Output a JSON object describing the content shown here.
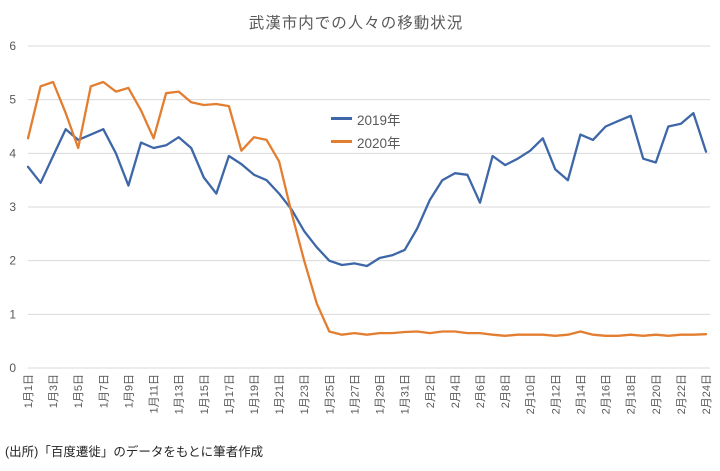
{
  "source_note": "(出所)「百度遷徙」のデータをもとに筆者作成",
  "colors": {
    "series_2019": "#3E67A8",
    "series_2020": "#E37E31",
    "gridline": "#D9D9D9",
    "axis_text": "#595959",
    "title_text": "#595959"
  },
  "chart_data": {
    "type": "line",
    "title": "武漢市内での人々の移動状況",
    "xlabel": "",
    "ylabel": "",
    "ylim": [
      0,
      6
    ],
    "y_ticks": [
      0,
      1,
      2,
      3,
      4,
      5,
      6
    ],
    "grid": true,
    "legend_position": "inside-top-center",
    "x_tick_step": 2,
    "categories": [
      "1月1日",
      "1月2日",
      "1月3日",
      "1月4日",
      "1月5日",
      "1月6日",
      "1月7日",
      "1月8日",
      "1月9日",
      "1月10日",
      "1月11日",
      "1月12日",
      "1月13日",
      "1月14日",
      "1月15日",
      "1月16日",
      "1月17日",
      "1月18日",
      "1月19日",
      "1月20日",
      "1月21日",
      "1月22日",
      "1月23日",
      "1月24日",
      "1月25日",
      "1月26日",
      "1月27日",
      "1月28日",
      "1月29日",
      "1月30日",
      "1月31日",
      "2月1日",
      "2月2日",
      "2月3日",
      "2月4日",
      "2月5日",
      "2月6日",
      "2月7日",
      "2月8日",
      "2月9日",
      "2月10日",
      "2月11日",
      "2月12日",
      "2月13日",
      "2月14日",
      "2月15日",
      "2月16日",
      "2月17日",
      "2月18日",
      "2月19日",
      "2月20日",
      "2月21日",
      "2月22日",
      "2月23日",
      "2月24日"
    ],
    "series": [
      {
        "name": "2019年",
        "color": "#3E67A8",
        "values": [
          3.75,
          3.45,
          3.95,
          4.45,
          4.25,
          4.35,
          4.45,
          4.0,
          3.4,
          4.2,
          4.1,
          4.15,
          4.3,
          4.1,
          3.55,
          3.25,
          3.95,
          3.8,
          3.6,
          3.5,
          3.25,
          2.95,
          2.55,
          2.25,
          2.0,
          1.92,
          1.95,
          1.9,
          2.05,
          2.1,
          2.2,
          2.6,
          3.13,
          3.5,
          3.63,
          3.6,
          3.08,
          3.95,
          3.78,
          3.9,
          4.05,
          4.28,
          3.7,
          3.5,
          4.35,
          4.25,
          4.5,
          4.6,
          4.7,
          3.9,
          3.83,
          4.5,
          4.55,
          4.75,
          4.03
        ]
      },
      {
        "name": "2020年",
        "color": "#E37E31",
        "values": [
          4.28,
          5.25,
          5.33,
          4.75,
          4.1,
          5.25,
          5.33,
          5.15,
          5.22,
          4.8,
          4.28,
          5.12,
          5.15,
          4.95,
          4.9,
          4.92,
          4.88,
          4.05,
          4.3,
          4.25,
          3.85,
          2.88,
          2.0,
          1.2,
          0.68,
          0.62,
          0.65,
          0.62,
          0.65,
          0.65,
          0.67,
          0.68,
          0.65,
          0.68,
          0.68,
          0.65,
          0.65,
          0.62,
          0.6,
          0.62,
          0.62,
          0.62,
          0.6,
          0.62,
          0.68,
          0.62,
          0.6,
          0.6,
          0.62,
          0.6,
          0.62,
          0.6,
          0.62,
          0.62,
          0.63
        ]
      }
    ]
  }
}
